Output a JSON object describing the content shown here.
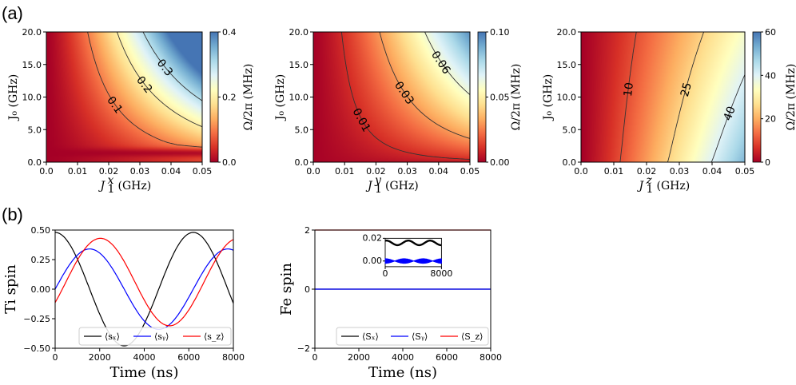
{
  "panel_labels": {
    "a": "(a)",
    "b": "(b)"
  },
  "colors": {
    "colormap": [
      "#a50026",
      "#d73027",
      "#f46d43",
      "#fdae61",
      "#fee090",
      "#ffffbf",
      "#e0f3f8",
      "#abd9e9",
      "#74add1",
      "#4575b4"
    ],
    "sx": "#000000",
    "sy": "#0000ff",
    "sz": "#ff0000",
    "contour": "#333333"
  },
  "chart_data": [
    {
      "type": "heatmap",
      "id": "a1",
      "xlabel_main": "J",
      "xlabel_sub": "1",
      "xlabel_sup": "x",
      "xlabel_unit": "(GHz)",
      "ylabel": "J₀ (GHz)",
      "xlim": [
        0,
        0.05
      ],
      "ylim": [
        0,
        20
      ],
      "x_ticks": [
        "0.0",
        "0.01",
        "0.02",
        "0.03",
        "0.04",
        "0.05"
      ],
      "y_ticks": [
        "0.0",
        "5.0",
        "10.0",
        "15.0",
        "20.0"
      ],
      "colorbar_label": "Ω/2π (MHz)",
      "colorbar_range": [
        0,
        0.4
      ],
      "colorbar_ticks": [
        "0.0",
        "0.2",
        "0.4"
      ],
      "contour_levels": [
        {
          "value": 0.1,
          "label": "0.1"
        },
        {
          "value": 0.2,
          "label": "0.2"
        },
        {
          "value": 0.3,
          "label": "0.3"
        }
      ]
    },
    {
      "type": "heatmap",
      "id": "a2",
      "xlabel_main": "J",
      "xlabel_sub": "1",
      "xlabel_sup": "y",
      "xlabel_unit": "(GHz)",
      "ylabel": "J₀ (GHz)",
      "xlim": [
        0,
        0.05
      ],
      "ylim": [
        0,
        20
      ],
      "x_ticks": [
        "0.0",
        "0.01",
        "0.02",
        "0.03",
        "0.04",
        "0.05"
      ],
      "y_ticks": [
        "0.0",
        "5.0",
        "10.0",
        "15.0",
        "20.0"
      ],
      "colorbar_label": "Ω/2π (MHz)",
      "colorbar_range": [
        0,
        0.1
      ],
      "colorbar_ticks": [
        "0.00",
        "0.05",
        "0.10"
      ],
      "contour_levels": [
        {
          "value": 0.01,
          "label": "0.01"
        },
        {
          "value": 0.03,
          "label": "0.03"
        },
        {
          "value": 0.06,
          "label": "0.06"
        }
      ]
    },
    {
      "type": "heatmap",
      "id": "a3",
      "xlabel_main": "J",
      "xlabel_sub": "1",
      "xlabel_sup": "z",
      "xlabel_unit": "(GHz)",
      "ylabel": "J₀ (GHz)",
      "xlim": [
        0,
        0.05
      ],
      "ylim": [
        0,
        20
      ],
      "x_ticks": [
        "0.0",
        "0.01",
        "0.02",
        "0.03",
        "0.04",
        "0.05"
      ],
      "y_ticks": [
        "0.0",
        "5.0",
        "10.0",
        "15.0",
        "20.0"
      ],
      "colorbar_label": "Ω/2π (MHz)",
      "colorbar_range": [
        0,
        60
      ],
      "colorbar_ticks": [
        "0",
        "20",
        "40",
        "60"
      ],
      "contour_levels": [
        {
          "value": 10,
          "label": "10"
        },
        {
          "value": 25,
          "label": "25"
        },
        {
          "value": 40,
          "label": "40"
        }
      ]
    },
    {
      "type": "line",
      "id": "b1",
      "xlabel": "Time (ns)",
      "ylabel": "Ti spin",
      "xlim": [
        0,
        8000
      ],
      "ylim": [
        -0.5,
        0.5
      ],
      "x_ticks": [
        "0",
        "2000",
        "4000",
        "6000",
        "8000"
      ],
      "y_ticks": [
        "−0.50",
        "−0.25",
        "0.00",
        "0.25",
        "0.50"
      ],
      "series": [
        {
          "name": "⟨sₓ⟩",
          "amplitude": 0.48,
          "period": 6200,
          "phase_deg": 90,
          "offset": 0
        },
        {
          "name": "⟨sᵧ⟩",
          "amplitude": 0.34,
          "period": 6200,
          "phase_deg": 0,
          "offset": 0
        },
        {
          "name": "⟨s_z⟩",
          "amplitude": 0.37,
          "period": 6200,
          "phase_deg": -28,
          "offset": 0.06
        }
      ],
      "legend": [
        "⟨sₓ⟩",
        "⟨sᵧ⟩",
        "⟨s_z⟩"
      ]
    },
    {
      "type": "line",
      "id": "b2",
      "xlabel": "Time (ns)",
      "ylabel": "Fe spin",
      "xlim": [
        0,
        8000
      ],
      "ylim": [
        -2,
        2
      ],
      "x_ticks": [
        "0",
        "2000",
        "4000",
        "6000",
        "8000"
      ],
      "y_ticks": [
        "−2",
        "0",
        "2"
      ],
      "series": [
        {
          "name": "⟨Sₓ⟩",
          "value": 0.0
        },
        {
          "name": "⟨Sᵧ⟩",
          "value": 0.0
        },
        {
          "name": "⟨S_z⟩",
          "value": 2.0
        }
      ],
      "legend": [
        "⟨Sₓ⟩",
        "⟨Sᵧ⟩",
        "⟨S_z⟩"
      ],
      "inset": {
        "xlim": [
          0,
          8000
        ],
        "ylim": [
          -0.005,
          0.02
        ],
        "x_ticks": [
          "0",
          "8000"
        ],
        "y_ticks": [
          "0.00",
          "0.02"
        ],
        "sx_mean": 0.016,
        "sx_amp": 0.002,
        "sy_mean": 0.0,
        "sy_amp": 0.002
      }
    }
  ]
}
